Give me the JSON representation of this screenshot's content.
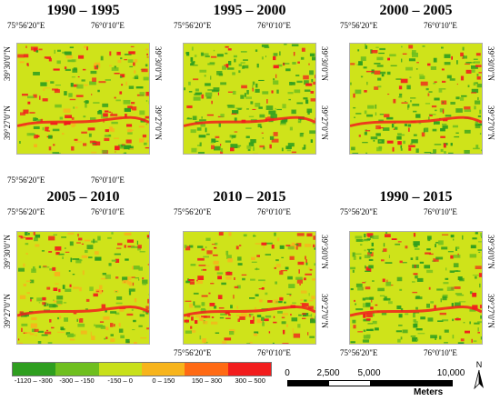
{
  "panels": [
    {
      "title": "1990 – 1995",
      "lon_left": "75°56'20\"E",
      "lon_right": "76°0'10\"E",
      "lat_top": "39°30'0\"N",
      "lat_bottom": "39°27'0\"N",
      "bottom_labels": true
    },
    {
      "title": "1995 – 2000",
      "lon_left": "75°56'20\"E",
      "lon_right": "76°0'10\"E",
      "lat_top": "39°30'0\"N",
      "lat_bottom": "39°27'0\"N",
      "bottom_labels": false
    },
    {
      "title": "2000 – 2005",
      "lon_left": "75°56'20\"E",
      "lon_right": "76°0'10\"E",
      "lat_top": "39°30'0\"N",
      "lat_bottom": "39°27'0\"N",
      "bottom_labels": false
    },
    {
      "title": "2005 – 2010",
      "lon_left": "75°56'20\"E",
      "lon_right": "76°0'10\"E",
      "lat_top": "39°30'0\"N",
      "lat_bottom": "39°27'0\"N",
      "bottom_labels": false
    },
    {
      "title": "2010 – 2015",
      "lon_left": "75°56'20\"E",
      "lon_right": "76°0'10\"E",
      "lat_top": "39°30'0\"N",
      "lat_bottom": "39°27'0\"N",
      "bottom_labels": true
    },
    {
      "title": "1990 – 2015",
      "lon_left": "75°56'20\"E",
      "lon_right": "76°0'10\"E",
      "lat_top": "39°30'0\"N",
      "lat_bottom": "39°27'0\"N",
      "bottom_labels": true
    }
  ],
  "legend": {
    "classes": [
      {
        "label": "-1120 – -300",
        "color": "#2e9e1f"
      },
      {
        "label": "-300 – -150",
        "color": "#6fbf1f"
      },
      {
        "label": "-150 – 0",
        "color": "#c8e01a"
      },
      {
        "label": "0 – 150",
        "color": "#f7b41c"
      },
      {
        "label": "150 – 300",
        "color": "#ff6a14"
      },
      {
        "label": "300 – 500",
        "color": "#f21d1d"
      }
    ]
  },
  "scalebar": {
    "ticks": [
      "0",
      "2,500",
      "5,000",
      "10,000"
    ],
    "units": "Meters"
  },
  "north_arrow": {
    "label": "N",
    "icon": "north-arrow-icon"
  },
  "colors": {
    "base": "#cfe31a",
    "green_dark": "#2e9e1f",
    "green_mid": "#6fbf1f",
    "orange": "#f7b41c",
    "red": "#f21d1d",
    "frame": "#b0b0b0"
  }
}
